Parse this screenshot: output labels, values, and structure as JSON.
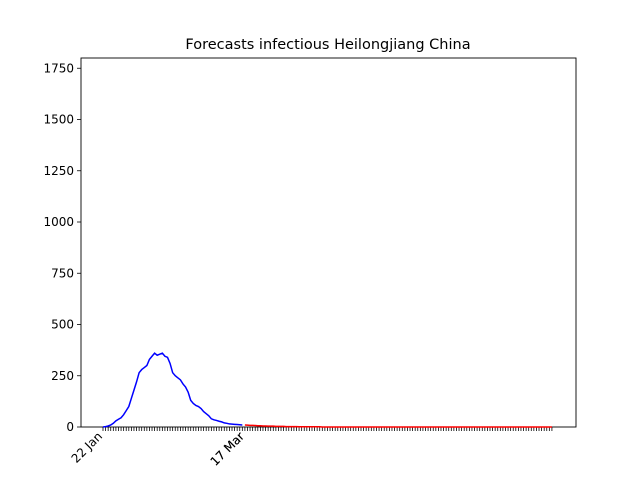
{
  "chart_data": {
    "type": "line",
    "title": "Forecasts infectious Heilongjiang China",
    "categories": [
      "22 Jan",
      null,
      null,
      null,
      null,
      null,
      null,
      null,
      null,
      null,
      null,
      null,
      null,
      null,
      null,
      null,
      null,
      null,
      null,
      null,
      null,
      null,
      null,
      null,
      null,
      null,
      null,
      null,
      null,
      null,
      null,
      null,
      null,
      null,
      null,
      null,
      null,
      null,
      null,
      null,
      null,
      null,
      null,
      null,
      null,
      null,
      null,
      null,
      null,
      null,
      null,
      null,
      null,
      null,
      null,
      "17 Mar",
      null,
      null,
      null,
      null,
      null,
      null,
      null,
      null,
      null,
      null,
      null,
      null,
      null,
      null,
      null,
      null,
      null,
      null,
      null,
      null,
      null,
      null,
      null,
      null,
      null,
      null,
      null,
      null,
      null,
      null,
      null,
      null,
      null,
      null,
      null,
      null,
      null,
      null,
      null,
      null,
      null,
      null,
      null,
      null,
      null,
      null,
      null,
      null,
      null,
      null,
      null,
      null,
      null,
      null,
      null,
      null,
      null,
      null,
      null,
      null,
      null,
      null,
      null,
      null,
      null,
      null,
      null,
      null,
      null,
      null,
      null,
      null,
      null,
      null,
      null,
      null,
      null,
      null,
      null,
      null,
      null,
      null,
      null,
      null,
      null,
      null,
      null,
      null,
      null,
      null,
      null,
      null,
      null,
      null,
      null,
      null,
      null,
      null,
      null,
      null,
      null,
      null,
      null,
      null,
      null,
      null,
      null,
      null,
      null,
      null,
      null,
      null,
      null,
      null,
      null,
      null,
      null,
      null,
      null
    ],
    "forecast_start_label": "17 Mar",
    "series": [
      {
        "color": "#0000ff",
        "values": [
          0,
          2,
          5,
          10,
          18,
          30,
          38,
          45,
          60,
          80,
          100,
          140,
          180,
          220,
          265,
          280,
          290,
          300,
          330,
          345,
          360,
          350,
          355,
          360,
          345,
          340,
          310,
          265,
          250,
          240,
          230,
          210,
          195,
          170,
          130,
          115,
          105,
          100,
          90,
          75,
          65,
          55,
          40,
          35,
          32,
          28,
          25,
          20,
          18,
          15,
          14,
          13,
          12,
          11,
          10,
          null,
          null,
          null,
          null,
          null,
          null,
          null,
          null,
          null,
          null,
          null,
          null,
          null,
          null,
          null,
          null,
          null,
          null,
          null,
          null,
          null,
          null,
          null,
          null,
          null,
          null,
          null,
          null,
          null,
          null,
          null,
          null,
          null,
          null,
          null,
          null,
          null,
          null,
          null,
          null,
          null,
          null,
          null,
          null,
          null,
          null,
          null,
          null,
          null,
          null,
          null,
          null,
          null,
          null,
          null,
          null,
          null,
          null,
          null,
          null,
          null,
          null,
          null,
          null,
          null,
          null,
          null,
          null,
          null,
          null,
          null,
          null,
          null,
          null,
          null,
          null,
          null,
          null,
          null,
          null,
          null,
          null,
          null,
          null,
          null,
          null,
          null,
          null,
          null,
          null,
          null,
          null,
          null,
          null,
          null,
          null,
          null,
          null,
          null,
          null,
          null,
          null,
          null,
          null,
          null,
          null,
          null,
          null,
          null,
          null,
          null,
          null,
          null,
          null,
          null,
          null,
          null,
          null,
          null,
          null
        ]
      },
      {
        "color": "#ff0000",
        "values": [
          null,
          null,
          null,
          null,
          null,
          null,
          null,
          null,
          null,
          null,
          null,
          null,
          null,
          null,
          null,
          null,
          null,
          null,
          null,
          null,
          null,
          null,
          null,
          null,
          null,
          null,
          null,
          null,
          null,
          null,
          null,
          null,
          null,
          null,
          null,
          null,
          null,
          null,
          null,
          null,
          null,
          null,
          null,
          null,
          null,
          null,
          null,
          null,
          null,
          null,
          null,
          null,
          null,
          null,
          null,
          10,
          9,
          8,
          8,
          7,
          6,
          6,
          5,
          5,
          4,
          4,
          4,
          3,
          3,
          3,
          3,
          2,
          2,
          2,
          2,
          2,
          1,
          1,
          1,
          1,
          1,
          1,
          1,
          1,
          1,
          0,
          0,
          0,
          0,
          0,
          0,
          0,
          0,
          0,
          0,
          0,
          0,
          0,
          0,
          0,
          0,
          0,
          0,
          0,
          0,
          0,
          0,
          0,
          0,
          0,
          0,
          0,
          0,
          0,
          0,
          0,
          0,
          0,
          0,
          0,
          0,
          0,
          0,
          0,
          0,
          0,
          0,
          0,
          0,
          0,
          0,
          0,
          0,
          0,
          0,
          0,
          0,
          0,
          0,
          0,
          0,
          0,
          0,
          0,
          0,
          0,
          0,
          0,
          0,
          0,
          0,
          0,
          0,
          0,
          0,
          0,
          0,
          0,
          0,
          0,
          0,
          0,
          0,
          0,
          0,
          0,
          0,
          0,
          0,
          0,
          0,
          0,
          0,
          0,
          0
        ]
      }
    ],
    "ylim": [
      0,
      1800
    ],
    "yticks": [
      0,
      250,
      500,
      750,
      1000,
      1250,
      1500,
      1750
    ]
  }
}
